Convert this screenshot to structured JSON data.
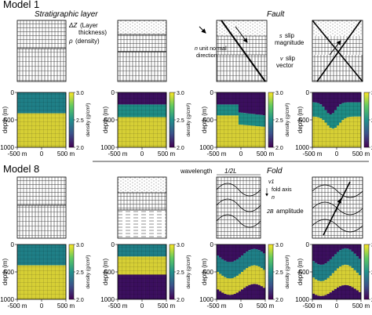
{
  "model1": {
    "title": "Model 1",
    "stratigraphic_label": "Stratigraphic layer",
    "fault_label": "Fault",
    "delta_z": "ΔZ",
    "layer_thickness_1": "(Layer",
    "layer_thickness_2": "thickness)",
    "rho_symbol": "ρ",
    "density_word": "(density)",
    "n_symbol": "n",
    "unit_normal_1": "unit normal",
    "unit_normal_2": "direction",
    "s_symbol": "s",
    "slip_magnitude_1": "slip",
    "slip_magnitude_2": "magnitude",
    "v_symbol": "v",
    "slip_vector_1": "slip",
    "slip_vector_2": "vector"
  },
  "model8": {
    "title": "Model 8",
    "wavelength_label": "wavelength",
    "half_l_label": "1/2L",
    "fold_label": "Fold",
    "v1_symbol": "v1",
    "fold_axis_label": "fold axis",
    "n_symbol": "n",
    "amplitude_prefix": "2B",
    "amplitude_label": "amplitude"
  },
  "axes": {
    "ylabel": "depth (m)",
    "y_ticks": [
      "0",
      "500",
      "1000"
    ],
    "x_ticks": [
      "-500 m",
      "0",
      "500 m"
    ],
    "colorbar_label": "density (g/cm³)",
    "colorbar_ticks": [
      "3.0",
      "2.5",
      "2.0"
    ]
  },
  "colors": {
    "dark": "#3b0f5e",
    "mid_dark": "#2c6a8a",
    "mid": "#1e8c84",
    "mid_light": "#3aae6e",
    "light": "#e1d93a",
    "gridline": "#000000"
  },
  "chart_data": [
    {
      "type": "heatmap",
      "model": "Model 1",
      "panel": 1,
      "description": "two-layer",
      "layer_values": [
        2.6,
        2.9
      ],
      "ylim": [
        1000,
        0
      ],
      "xlim": [
        -500,
        500
      ],
      "clim": [
        2.0,
        3.0
      ]
    },
    {
      "type": "heatmap",
      "model": "Model 1",
      "panel": 2,
      "layer_values": [
        2.1,
        2.5,
        2.9
      ],
      "ylim": [
        1000,
        0
      ],
      "xlim": [
        -500,
        500
      ],
      "clim": [
        2.0,
        3.0
      ]
    },
    {
      "type": "heatmap",
      "model": "Model 1",
      "panel": 3,
      "layer_values": [
        2.1,
        2.5,
        2.9
      ],
      "ylim": [
        1000,
        0
      ],
      "xlim": [
        -500,
        500
      ],
      "clim": [
        2.0,
        3.0
      ]
    },
    {
      "type": "heatmap",
      "model": "Model 1",
      "panel": 4,
      "layer_values": [
        2.1,
        2.5,
        2.9
      ],
      "ylim": [
        1000,
        0
      ],
      "xlim": [
        -500,
        500
      ],
      "clim": [
        2.0,
        3.0
      ]
    },
    {
      "type": "heatmap",
      "model": "Model 8",
      "panel": 1,
      "layer_values": [
        2.6,
        2.9
      ],
      "ylim": [
        1000,
        0
      ],
      "xlim": [
        -500,
        500
      ],
      "clim": [
        2.0,
        3.0
      ]
    },
    {
      "type": "heatmap",
      "model": "Model 8",
      "panel": 2,
      "layer_values": [
        2.6,
        2.9,
        2.1
      ],
      "ylim": [
        1000,
        0
      ],
      "xlim": [
        -500,
        500
      ],
      "clim": [
        2.0,
        3.0
      ]
    },
    {
      "type": "heatmap",
      "model": "Model 8",
      "panel": 3,
      "layer_values": [
        2.1,
        2.6,
        2.9,
        2.1
      ],
      "ylim": [
        1000,
        0
      ],
      "xlim": [
        -500,
        500
      ],
      "clim": [
        2.0,
        3.0
      ]
    },
    {
      "type": "heatmap",
      "model": "Model 8",
      "panel": 4,
      "layer_values": [
        2.1,
        2.6,
        2.9,
        2.1
      ],
      "ylim": [
        1000,
        0
      ],
      "xlim": [
        -500,
        500
      ],
      "clim": [
        2.0,
        3.0
      ]
    }
  ]
}
